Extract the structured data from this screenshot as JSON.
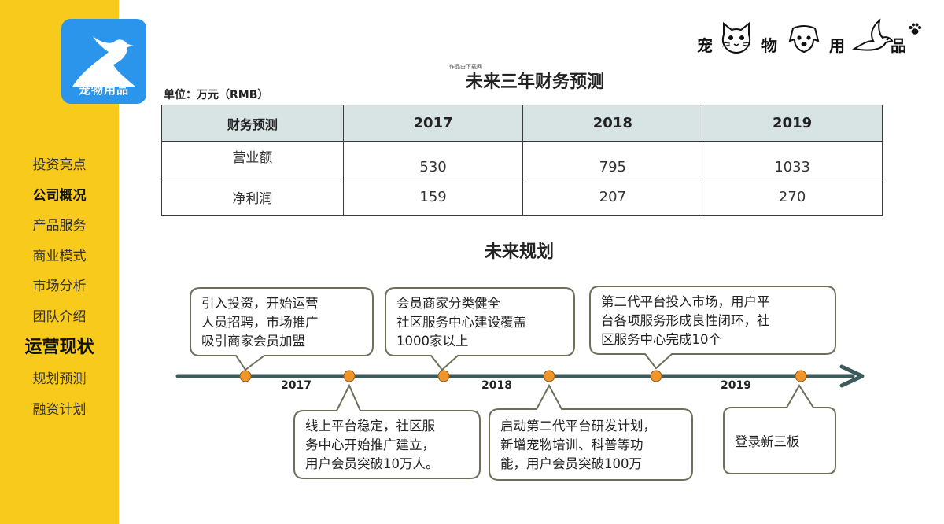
{
  "sidebar": {
    "logo_text": "宠物用品",
    "nav": [
      {
        "label": "投资亮点",
        "style": "normal"
      },
      {
        "label": "公司概况",
        "style": "bold"
      },
      {
        "label": "产品服务",
        "style": "normal"
      },
      {
        "label": "商业模式",
        "style": "normal"
      },
      {
        "label": "市场分析",
        "style": "normal"
      },
      {
        "label": "团队介绍",
        "style": "normal"
      },
      {
        "label": "运营现状",
        "style": "large"
      },
      {
        "label": "规划预测",
        "style": "normal"
      },
      {
        "label": "融资计划",
        "style": "normal"
      }
    ]
  },
  "brand": {
    "chars": [
      "宠",
      "物",
      "用",
      "品"
    ]
  },
  "finance": {
    "note": "作品由下载网",
    "title": "未来三年财务预测",
    "unit": "单位：万元（RMB）",
    "headers": [
      "财务预测",
      "2017",
      "2018",
      "2019"
    ],
    "rows": [
      {
        "label": "营业额",
        "values": [
          "530",
          "795",
          "1033"
        ]
      },
      {
        "label": "净利润",
        "values": [
          "159",
          "207",
          "270"
        ]
      }
    ]
  },
  "plan": {
    "title": "未来规划",
    "years": [
      "2017",
      "2018",
      "2019"
    ],
    "top_boxes": [
      {
        "lines": [
          "引入投资，开始运营",
          "人员招聘，市场推广",
          "吸引商家会员加盟"
        ]
      },
      {
        "lines": [
          "会员商家分类健全",
          "社区服务中心建设覆盖",
          "1000家以上"
        ]
      },
      {
        "lines": [
          "第二代平台投入市场，用户平",
          "台各项服务形成良性闭环，社",
          "区服务中心完成10个"
        ]
      }
    ],
    "bottom_boxes": [
      {
        "lines": [
          "线上平台稳定，社区服",
          "务中心开始推广建立，",
          "用户会员突破10万人。"
        ]
      },
      {
        "lines": [
          "启动第二代平台研发计划，",
          "新增宠物培训、科普等功",
          "能，用户会员突破100万"
        ]
      },
      {
        "lines": [
          "登录新三板"
        ]
      }
    ]
  },
  "colors": {
    "sidebar": "#f8ca1c",
    "logo_bg": "#2a95ea",
    "table_header": "#d8e4e3",
    "timeline_line": "#3e5a5a",
    "dot": "#f0952a"
  }
}
